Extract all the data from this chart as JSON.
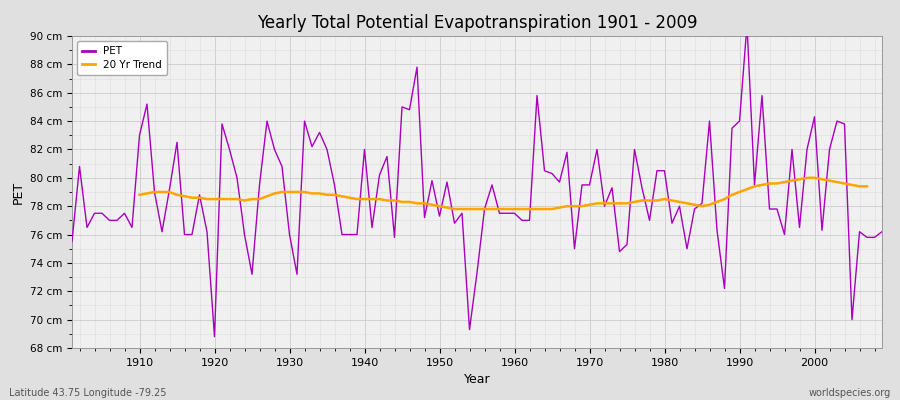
{
  "title": "Yearly Total Potential Evapotranspiration 1901 - 2009",
  "xlabel": "Year",
  "ylabel": "PET",
  "subtitle_left": "Latitude 43.75 Longitude -79.25",
  "subtitle_right": "worldspecies.org",
  "ylim": [
    68,
    90
  ],
  "yticks": [
    68,
    70,
    72,
    74,
    76,
    78,
    80,
    82,
    84,
    86,
    88,
    90
  ],
  "ytick_labels": [
    "68 cm",
    "70 cm",
    "72 cm",
    "74 cm",
    "76 cm",
    "78 cm",
    "80 cm",
    "82 cm",
    "84 cm",
    "86 cm",
    "88 cm",
    "90 cm"
  ],
  "pet_color": "#AA00BB",
  "trend_color": "#FFA500",
  "fig_bg_color": "#E0E0E0",
  "plot_bg_color": "#F0F0F0",
  "grid_color_major": "#CCCCCC",
  "grid_color_minor": "#DDDDDD",
  "xlim": [
    1901,
    2009
  ],
  "xticks": [
    1910,
    1920,
    1930,
    1940,
    1950,
    1960,
    1970,
    1980,
    1990,
    2000
  ],
  "years": [
    1901,
    1902,
    1903,
    1904,
    1905,
    1906,
    1907,
    1908,
    1909,
    1910,
    1911,
    1912,
    1913,
    1914,
    1915,
    1916,
    1917,
    1918,
    1919,
    1920,
    1921,
    1922,
    1923,
    1924,
    1925,
    1926,
    1927,
    1928,
    1929,
    1930,
    1931,
    1932,
    1933,
    1934,
    1935,
    1936,
    1937,
    1938,
    1939,
    1940,
    1941,
    1942,
    1943,
    1944,
    1945,
    1946,
    1947,
    1948,
    1949,
    1950,
    1951,
    1952,
    1953,
    1954,
    1955,
    1956,
    1957,
    1958,
    1959,
    1960,
    1961,
    1962,
    1963,
    1964,
    1965,
    1966,
    1967,
    1968,
    1969,
    1970,
    1971,
    1972,
    1973,
    1974,
    1975,
    1976,
    1977,
    1978,
    1979,
    1980,
    1981,
    1982,
    1983,
    1984,
    1985,
    1986,
    1987,
    1988,
    1989,
    1990,
    1991,
    1992,
    1993,
    1994,
    1995,
    1996,
    1997,
    1998,
    1999,
    2000,
    2001,
    2002,
    2003,
    2004,
    2005,
    2006,
    2007,
    2008,
    2009
  ],
  "pet_values": [
    75.5,
    80.8,
    76.5,
    77.5,
    77.5,
    77.0,
    77.0,
    77.5,
    76.5,
    83.0,
    85.2,
    79.0,
    76.2,
    79.2,
    82.5,
    76.0,
    76.0,
    78.8,
    76.2,
    68.8,
    83.8,
    82.0,
    80.0,
    76.0,
    73.2,
    79.5,
    84.0,
    82.0,
    80.8,
    76.0,
    73.2,
    84.0,
    82.2,
    83.2,
    82.0,
    79.5,
    76.0,
    76.0,
    76.0,
    82.0,
    76.5,
    80.2,
    81.5,
    75.8,
    85.0,
    84.8,
    87.8,
    77.2,
    79.8,
    77.3,
    79.7,
    76.8,
    77.5,
    69.3,
    73.3,
    77.8,
    79.5,
    77.5,
    77.5,
    77.5,
    77.0,
    77.0,
    85.8,
    80.5,
    80.3,
    79.7,
    81.8,
    75.0,
    79.5,
    79.5,
    82.0,
    78.0,
    79.3,
    74.8,
    75.3,
    82.0,
    79.3,
    77.0,
    80.5,
    80.5,
    76.8,
    78.0,
    75.0,
    77.8,
    78.2,
    84.0,
    76.3,
    72.2,
    83.5,
    84.0,
    90.8,
    79.5,
    85.8,
    77.8,
    77.8,
    76.0,
    82.0,
    76.5,
    82.0,
    84.3,
    76.3,
    82.0,
    84.0,
    83.8,
    70.0,
    76.2,
    75.8,
    75.8,
    76.2
  ],
  "trend_years": [
    1910,
    1911,
    1912,
    1913,
    1914,
    1915,
    1916,
    1917,
    1918,
    1919,
    1920,
    1921,
    1922,
    1923,
    1924,
    1925,
    1926,
    1927,
    1928,
    1929,
    1930,
    1931,
    1932,
    1933,
    1934,
    1935,
    1936,
    1937,
    1938,
    1939,
    1940,
    1941,
    1942,
    1943,
    1944,
    1945,
    1946,
    1947,
    1948,
    1949,
    1950,
    1951,
    1952,
    1953,
    1954,
    1955,
    1956,
    1957,
    1958,
    1959,
    1960,
    1961,
    1962,
    1963,
    1964,
    1965,
    1966,
    1967,
    1968,
    1969,
    1970,
    1971,
    1972,
    1973,
    1974,
    1975,
    1976,
    1977,
    1978,
    1979,
    1980,
    1981,
    1982,
    1983,
    1984,
    1985,
    1986,
    1987,
    1988,
    1989,
    1990,
    1991,
    1992,
    1993,
    1994,
    1995,
    1996,
    1997,
    1998,
    1999,
    2000,
    2001,
    2002,
    2003,
    2004,
    2005,
    2006,
    2007
  ],
  "trend_values": [
    78.8,
    78.9,
    79.0,
    79.0,
    79.0,
    78.8,
    78.7,
    78.6,
    78.6,
    78.5,
    78.5,
    78.5,
    78.5,
    78.5,
    78.4,
    78.5,
    78.5,
    78.7,
    78.9,
    79.0,
    79.0,
    79.0,
    79.0,
    78.9,
    78.9,
    78.8,
    78.8,
    78.7,
    78.6,
    78.5,
    78.5,
    78.5,
    78.5,
    78.4,
    78.4,
    78.3,
    78.3,
    78.2,
    78.2,
    78.1,
    78.0,
    77.9,
    77.8,
    77.8,
    77.8,
    77.8,
    77.8,
    77.8,
    77.8,
    77.8,
    77.8,
    77.8,
    77.8,
    77.8,
    77.8,
    77.8,
    77.9,
    78.0,
    78.0,
    78.0,
    78.1,
    78.2,
    78.2,
    78.2,
    78.2,
    78.2,
    78.3,
    78.4,
    78.4,
    78.4,
    78.5,
    78.4,
    78.3,
    78.2,
    78.1,
    78.0,
    78.1,
    78.3,
    78.5,
    78.8,
    79.0,
    79.2,
    79.4,
    79.5,
    79.6,
    79.6,
    79.7,
    79.8,
    79.9,
    80.0,
    80.0,
    79.9,
    79.8,
    79.7,
    79.6,
    79.5,
    79.4,
    79.4
  ]
}
